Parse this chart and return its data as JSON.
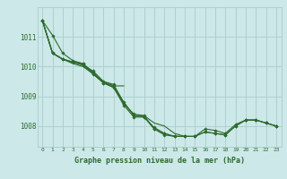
{
  "title": "Graphe pression niveau de la mer (hPa)",
  "bg_color": "#cce8e8",
  "grid_color": "#aacccc",
  "line_color": "#2d6b2d",
  "xlim": [
    -0.5,
    23.5
  ],
  "ylim": [
    1007.3,
    1012.0
  ],
  "yticks": [
    1008,
    1009,
    1010,
    1011
  ],
  "xticks": [
    0,
    1,
    2,
    3,
    4,
    5,
    6,
    7,
    8,
    9,
    10,
    11,
    12,
    13,
    14,
    15,
    16,
    17,
    18,
    19,
    20,
    21,
    22,
    23
  ],
  "series": [
    {
      "x": [
        0,
        1,
        2,
        3,
        4,
        5,
        6,
        7,
        8,
        9,
        10,
        11,
        12,
        13,
        14,
        15,
        16,
        17,
        18,
        19,
        20,
        21,
        22,
        23
      ],
      "y": [
        1011.55,
        1011.05,
        1010.45,
        1010.2,
        1010.1,
        1009.8,
        1009.45,
        1009.35,
        1008.75,
        1008.4,
        1008.35,
        1007.9,
        1007.75,
        1007.65,
        1007.65,
        1007.65,
        1007.8,
        1007.75,
        1007.7,
        1008.0,
        1008.2,
        1008.2,
        1008.1,
        1008.0
      ],
      "marker": true
    },
    {
      "x": [
        0,
        1,
        2,
        3,
        4,
        5,
        6,
        7,
        8
      ],
      "y": [
        1011.55,
        1010.45,
        1010.25,
        1010.15,
        1010.05,
        1009.75,
        1009.5,
        1009.35,
        1009.35
      ],
      "marker": false
    },
    {
      "x": [
        0,
        1,
        2,
        3,
        4,
        5,
        6,
        7,
        8,
        9,
        10,
        11,
        12,
        13,
        14
      ],
      "y": [
        1011.55,
        1010.45,
        1010.25,
        1010.1,
        1010.0,
        1009.75,
        1009.45,
        1009.3,
        1008.8,
        1008.35,
        1008.35,
        1008.1,
        1008.0,
        1007.75,
        1007.65
      ],
      "marker": false
    },
    {
      "x": [
        0,
        1,
        2,
        3,
        4,
        5,
        6,
        7,
        8,
        9,
        10,
        11,
        12,
        13,
        14,
        15,
        16,
        17,
        18,
        19,
        20,
        21,
        22,
        23
      ],
      "y": [
        1011.55,
        1010.45,
        1010.25,
        1010.15,
        1010.1,
        1009.75,
        1009.45,
        1009.3,
        1008.7,
        1008.3,
        1008.3,
        1007.9,
        1007.7,
        1007.65,
        1007.65,
        1007.65,
        1007.8,
        1007.75,
        1007.7,
        1008.0,
        1008.2,
        1008.2,
        1008.1,
        1008.0
      ],
      "marker": true
    },
    {
      "x": [
        0,
        1,
        2,
        3,
        4,
        5,
        6,
        7,
        8,
        9,
        10,
        11,
        12,
        13,
        14,
        15,
        16,
        17,
        18,
        19,
        20,
        21,
        22,
        23
      ],
      "y": [
        1011.55,
        1010.45,
        1010.25,
        1010.15,
        1010.05,
        1009.85,
        1009.5,
        1009.4,
        1008.8,
        1008.35,
        1008.3,
        1007.95,
        1007.75,
        1007.65,
        1007.65,
        1007.65,
        1007.9,
        1007.85,
        1007.75,
        1008.05,
        1008.2,
        1008.2,
        1008.1,
        1008.0
      ],
      "marker": true
    }
  ]
}
